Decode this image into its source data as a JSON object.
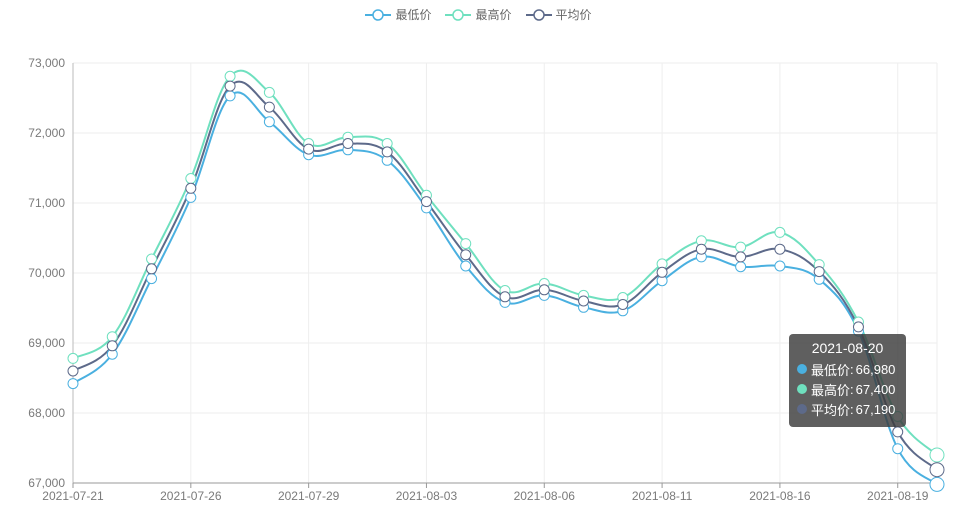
{
  "legend": [
    {
      "name": "最低价",
      "color": "#4ab0e0"
    },
    {
      "name": "最高价",
      "color": "#6fe0bf"
    },
    {
      "name": "平均价",
      "color": "#5d6a8a"
    }
  ],
  "tooltip": {
    "date": "2021-08-20",
    "rows": [
      {
        "label": "最低价",
        "value": "66,980",
        "color": "#4ab0e0"
      },
      {
        "label": "最高价",
        "value": "67,400",
        "color": "#6fe0bf"
      },
      {
        "label": "平均价",
        "value": "67,190",
        "color": "#5d6a8a"
      }
    ]
  },
  "chart_data": {
    "type": "line",
    "smooth": true,
    "x_tick_labels": [
      "2021-07-21",
      "2021-07-26",
      "2021-07-29",
      "2021-08-03",
      "2021-08-06",
      "2021-08-11",
      "2021-08-16",
      "2021-08-19"
    ],
    "y_tick_labels": [
      "67,000",
      "68,000",
      "69,000",
      "70,000",
      "71,000",
      "72,000",
      "73,000"
    ],
    "x": [
      "2021-07-21",
      "2021-07-22",
      "2021-07-23",
      "2021-07-26",
      "2021-07-27",
      "2021-07-28",
      "2021-07-29",
      "2021-07-30",
      "2021-08-02",
      "2021-08-03",
      "2021-08-04",
      "2021-08-05",
      "2021-08-06",
      "2021-08-09",
      "2021-08-10",
      "2021-08-11",
      "2021-08-12",
      "2021-08-13",
      "2021-08-16",
      "2021-08-17",
      "2021-08-18",
      "2021-08-19",
      "2021-08-20"
    ],
    "ylim": [
      67000,
      73000
    ],
    "grid": true,
    "legend_position": "top-center",
    "series": [
      {
        "name": "最低价",
        "color": "#4ab0e0",
        "values": [
          68420,
          68840,
          69920,
          71080,
          72530,
          72160,
          71690,
          71760,
          71610,
          70930,
          70100,
          69580,
          69680,
          69510,
          69460,
          69890,
          70230,
          70090,
          70100,
          69910,
          69170,
          67490,
          66980
        ]
      },
      {
        "name": "最高价",
        "color": "#6fe0bf",
        "values": [
          68780,
          69090,
          70200,
          71350,
          72810,
          72580,
          71850,
          71940,
          71850,
          71110,
          70420,
          69750,
          69850,
          69680,
          69650,
          70130,
          70460,
          70370,
          70580,
          70120,
          69300,
          67950,
          67400
        ]
      },
      {
        "name": "平均价",
        "color": "#5d6a8a",
        "values": [
          68600,
          68960,
          70060,
          71210,
          72670,
          72370,
          71770,
          71850,
          71730,
          71020,
          70260,
          69660,
          69760,
          69600,
          69550,
          70010,
          70340,
          70230,
          70340,
          70020,
          69230,
          67730,
          67190
        ]
      }
    ]
  }
}
